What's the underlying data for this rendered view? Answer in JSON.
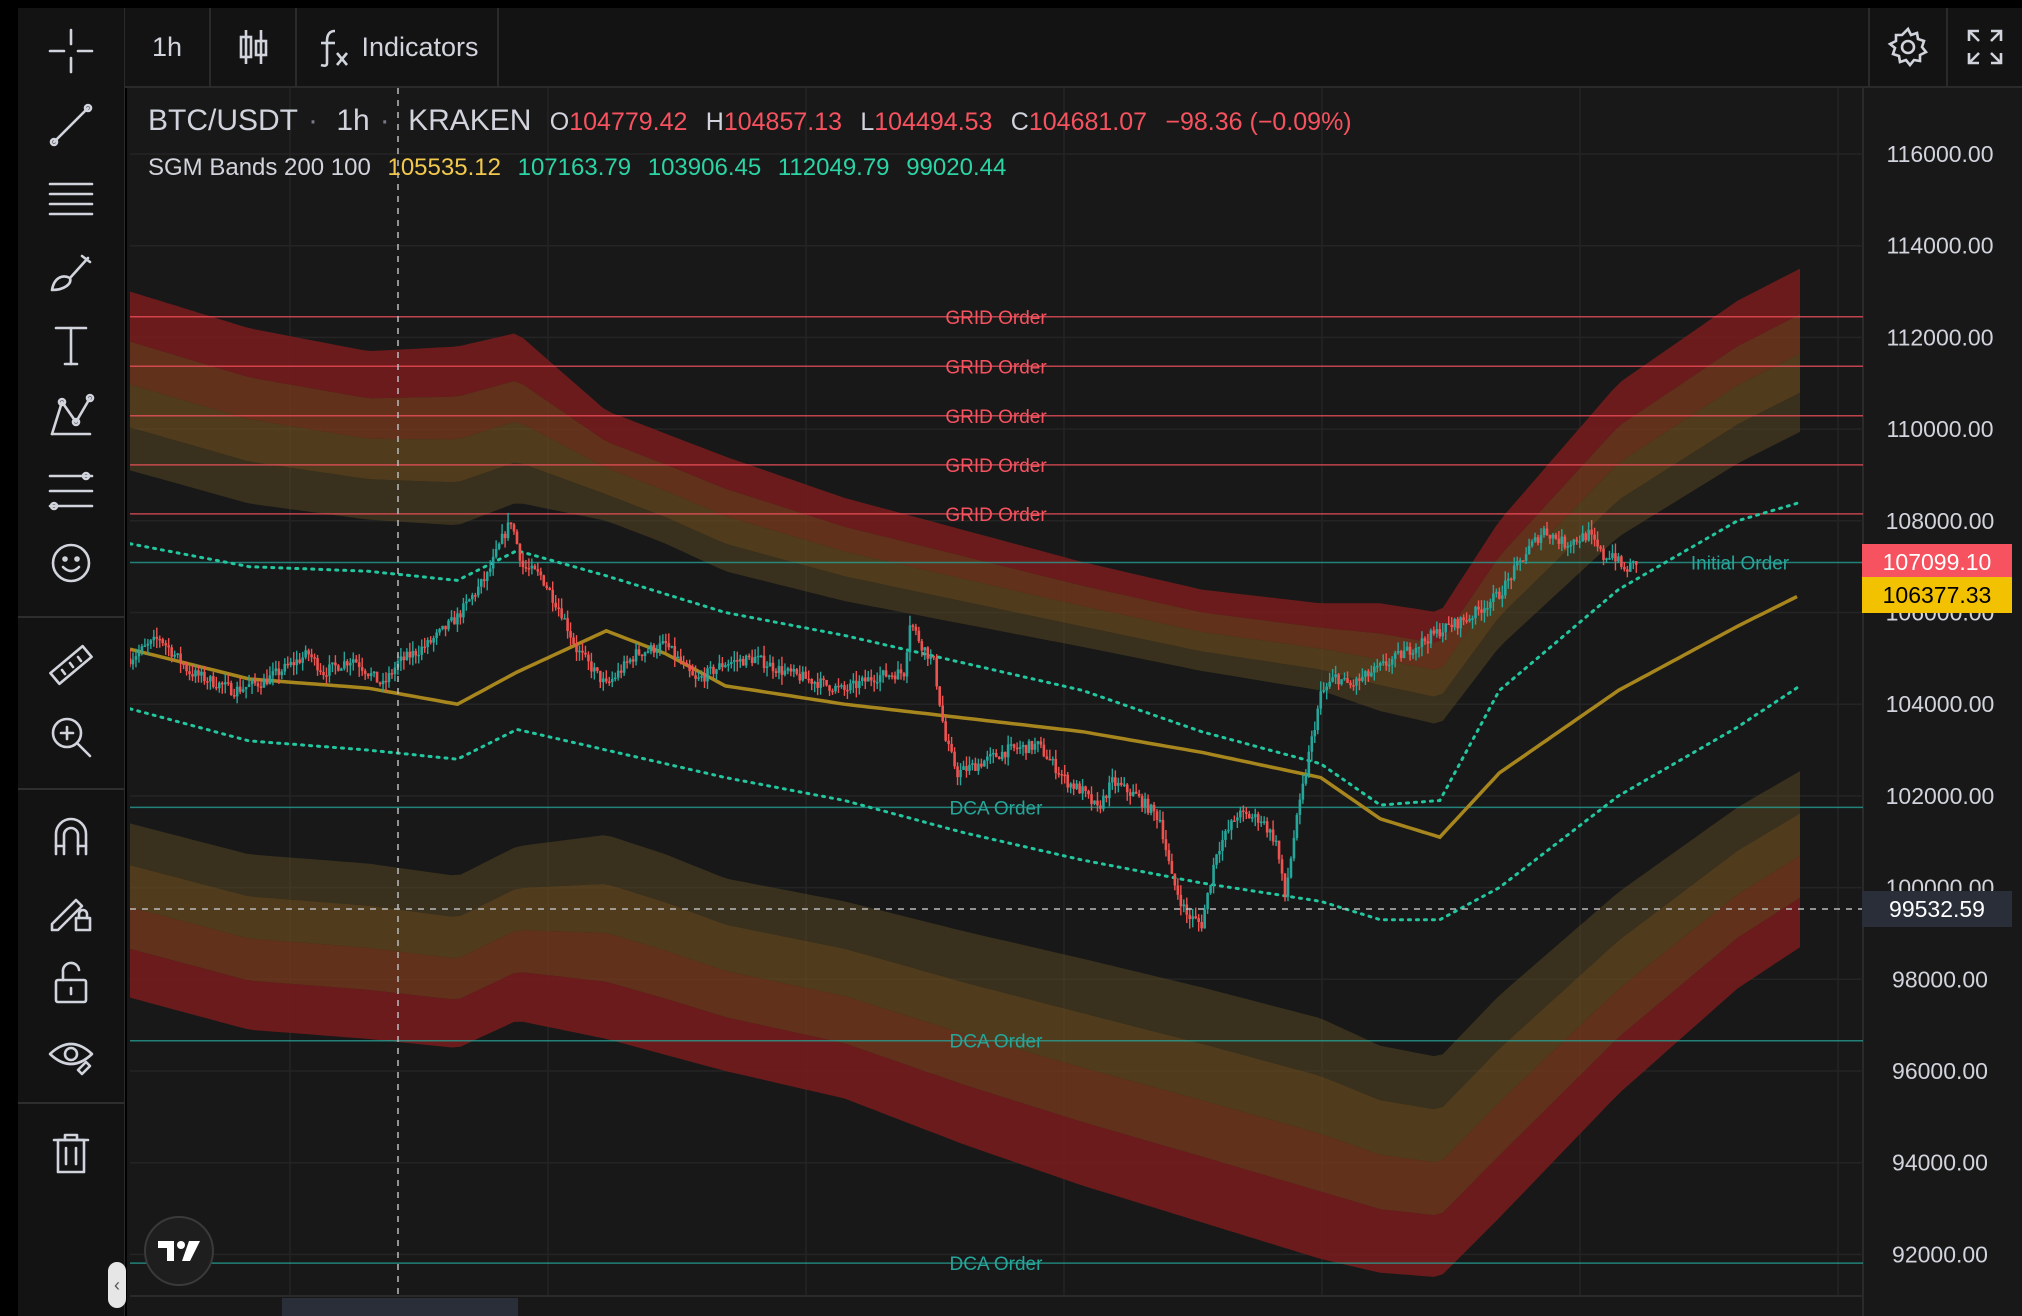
{
  "toolbar": {
    "interval": "1h",
    "indicators_label": "Indicators"
  },
  "left_tools": [
    {
      "name": "crosshair-icon"
    },
    {
      "name": "trend-line-icon"
    },
    {
      "name": "horizontal-lines-icon"
    },
    {
      "name": "brush-icon"
    },
    {
      "name": "text-icon"
    },
    {
      "name": "pattern-icon"
    },
    {
      "name": "forecast-icon"
    },
    {
      "name": "emoji-icon"
    },
    {
      "name": "ruler-icon"
    },
    {
      "name": "zoom-icon"
    },
    {
      "name": "magnet-icon"
    },
    {
      "name": "draw-lock-icon"
    },
    {
      "name": "unlock-icon"
    },
    {
      "name": "eye-icon"
    },
    {
      "name": "trash-icon"
    }
  ],
  "legend": {
    "symbol": "BTC/USDT",
    "interval": "1h",
    "exchange": "KRAKEN",
    "o_label": "O",
    "o_value": "104779.42",
    "h_label": "H",
    "h_value": "104857.13",
    "l_label": "L",
    "l_value": "104494.53",
    "c_label": "C",
    "c_value": "104681.07",
    "change": "−98.36 (−0.09%)",
    "indicator_name": "SGM Bands 200 100",
    "ind_values": [
      "105535.12",
      "107163.79",
      "103906.45",
      "112049.79",
      "99020.44"
    ],
    "ind_colors": [
      "#f2c94c",
      "#2bd4a4",
      "#2bd4a4",
      "#2bd4a4",
      "#2bd4a4"
    ]
  },
  "price_axis": {
    "labels": [
      "116000.00",
      "114000.00",
      "112000.00",
      "110000.00",
      "108000.00",
      "106000.00",
      "104000.00",
      "102000.00",
      "100000.00",
      "98000.00",
      "96000.00",
      "94000.00",
      "92000.00"
    ],
    "values": [
      116000,
      114000,
      112000,
      110000,
      108000,
      106000,
      104000,
      102000,
      100000,
      98000,
      96000,
      94000,
      92000
    ]
  },
  "price_tags": [
    {
      "label": "107099.10",
      "value": 107099.1,
      "bg": "#f7525f",
      "fg": "#ffffff"
    },
    {
      "label": "106377.33",
      "value": 106377.33,
      "bg": "#f2c200",
      "fg": "#000000"
    },
    {
      "label": "99532.59",
      "value": 99532.59,
      "bg": "#2a2e39",
      "fg": "#ffffff"
    }
  ],
  "orders": [
    {
      "label": "GRID Order",
      "price": 112450,
      "color": "#f7525f"
    },
    {
      "label": "GRID Order",
      "price": 111370,
      "color": "#f7525f"
    },
    {
      "label": "GRID Order",
      "price": 110290,
      "color": "#f7525f"
    },
    {
      "label": "GRID Order",
      "price": 109220,
      "color": "#f7525f"
    },
    {
      "label": "GRID Order",
      "price": 108150,
      "color": "#f7525f"
    },
    {
      "label": "Initial Order",
      "price": 107090,
      "color": "#26a69a"
    },
    {
      "label": "DCA Order",
      "price": 101750,
      "color": "#26a69a"
    },
    {
      "label": "DCA Order",
      "price": 96660,
      "color": "#26a69a"
    },
    {
      "label": "DCA Order",
      "price": 91810,
      "color": "#26a69a"
    }
  ],
  "colors": {
    "up": "#26a69a",
    "down": "#ef5350",
    "basis": "#a8861e",
    "band_dots": "#22c7a0"
  },
  "chart_data": {
    "type": "candlestick",
    "symbol": "BTC/USDT",
    "interval": "1h",
    "ylim": [
      91500,
      117500
    ],
    "basis": [
      [
        0,
        105200
      ],
      [
        40,
        104550
      ],
      [
        80,
        104350
      ],
      [
        110,
        104000
      ],
      [
        130,
        104700
      ],
      [
        160,
        105600
      ],
      [
        180,
        105100
      ],
      [
        200,
        104400
      ],
      [
        240,
        104000
      ],
      [
        280,
        103700
      ],
      [
        320,
        103400
      ],
      [
        360,
        102950
      ],
      [
        400,
        102400
      ],
      [
        420,
        101500
      ],
      [
        440,
        101100
      ],
      [
        460,
        102500
      ],
      [
        500,
        104300
      ],
      [
        540,
        105700
      ],
      [
        561,
        106380
      ]
    ],
    "upper_dots": [
      [
        0,
        107500
      ],
      [
        40,
        107000
      ],
      [
        80,
        106900
      ],
      [
        110,
        106700
      ],
      [
        130,
        107350
      ],
      [
        160,
        106800
      ],
      [
        200,
        106000
      ],
      [
        240,
        105500
      ],
      [
        280,
        104900
      ],
      [
        320,
        104300
      ],
      [
        360,
        103400
      ],
      [
        400,
        102700
      ],
      [
        420,
        101800
      ],
      [
        440,
        101900
      ],
      [
        460,
        104300
      ],
      [
        500,
        106500
      ],
      [
        540,
        108000
      ],
      [
        561,
        108400
      ]
    ],
    "lower_dots": [
      [
        0,
        103900
      ],
      [
        40,
        103200
      ],
      [
        80,
        103000
      ],
      [
        110,
        102800
      ],
      [
        130,
        103450
      ],
      [
        160,
        103000
      ],
      [
        200,
        102400
      ],
      [
        240,
        101900
      ],
      [
        280,
        101200
      ],
      [
        320,
        100600
      ],
      [
        360,
        100100
      ],
      [
        400,
        99700
      ],
      [
        420,
        99300
      ],
      [
        440,
        99300
      ],
      [
        460,
        100000
      ],
      [
        500,
        102000
      ],
      [
        540,
        103500
      ],
      [
        561,
        104400
      ]
    ],
    "upper_band": [
      [
        0,
        113000
      ],
      [
        40,
        112200
      ],
      [
        80,
        111700
      ],
      [
        110,
        111800
      ],
      [
        130,
        112100
      ],
      [
        160,
        110400
      ],
      [
        200,
        109400
      ],
      [
        240,
        108500
      ],
      [
        280,
        107800
      ],
      [
        320,
        107100
      ],
      [
        360,
        106500
      ],
      [
        400,
        106200
      ],
      [
        420,
        106200
      ],
      [
        440,
        106000
      ],
      [
        460,
        108000
      ],
      [
        500,
        111000
      ],
      [
        540,
        112800
      ],
      [
        561,
        113500
      ]
    ],
    "lower_band": [
      [
        0,
        97600
      ],
      [
        40,
        96900
      ],
      [
        80,
        96700
      ],
      [
        110,
        96500
      ],
      [
        130,
        97100
      ],
      [
        160,
        96700
      ],
      [
        200,
        96000
      ],
      [
        240,
        95400
      ],
      [
        280,
        94400
      ],
      [
        320,
        93500
      ],
      [
        360,
        92700
      ],
      [
        400,
        91900
      ],
      [
        420,
        91600
      ],
      [
        440,
        91500
      ],
      [
        460,
        92800
      ],
      [
        500,
        95500
      ],
      [
        540,
        97800
      ],
      [
        561,
        98700
      ]
    ],
    "price_path": [
      [
        0,
        105000
      ],
      [
        10,
        105450
      ],
      [
        20,
        104700
      ],
      [
        35,
        104300
      ],
      [
        45,
        104500
      ],
      [
        60,
        105100
      ],
      [
        65,
        104700
      ],
      [
        75,
        105000
      ],
      [
        85,
        104400
      ],
      [
        90,
        104900
      ],
      [
        100,
        105300
      ],
      [
        110,
        105900
      ],
      [
        120,
        106800
      ],
      [
        125,
        107600
      ],
      [
        128,
        108000
      ],
      [
        132,
        107000
      ],
      [
        138,
        106800
      ],
      [
        145,
        106000
      ],
      [
        150,
        105200
      ],
      [
        160,
        104400
      ],
      [
        170,
        105100
      ],
      [
        180,
        105300
      ],
      [
        190,
        104500
      ],
      [
        200,
        104900
      ],
      [
        210,
        105000
      ],
      [
        220,
        104700
      ],
      [
        230,
        104500
      ],
      [
        240,
        104300
      ],
      [
        250,
        104600
      ],
      [
        260,
        104700
      ],
      [
        262,
        105800
      ],
      [
        266,
        105300
      ],
      [
        270,
        104900
      ],
      [
        274,
        103200
      ],
      [
        278,
        102500
      ],
      [
        285,
        102700
      ],
      [
        295,
        103000
      ],
      [
        305,
        103100
      ],
      [
        315,
        102300
      ],
      [
        320,
        102100
      ],
      [
        325,
        101700
      ],
      [
        330,
        102300
      ],
      [
        338,
        102000
      ],
      [
        346,
        101500
      ],
      [
        350,
        100200
      ],
      [
        355,
        99400
      ],
      [
        360,
        99200
      ],
      [
        365,
        100800
      ],
      [
        372,
        101600
      ],
      [
        380,
        101500
      ],
      [
        385,
        101000
      ],
      [
        388,
        99800
      ],
      [
        391,
        101100
      ],
      [
        396,
        102900
      ],
      [
        400,
        104200
      ],
      [
        405,
        104600
      ],
      [
        410,
        104400
      ],
      [
        420,
        104800
      ],
      [
        430,
        105200
      ],
      [
        440,
        105600
      ],
      [
        450,
        105900
      ],
      [
        460,
        106400
      ],
      [
        465,
        106900
      ],
      [
        470,
        107400
      ],
      [
        475,
        107800
      ],
      [
        482,
        107500
      ],
      [
        490,
        107700
      ],
      [
        495,
        107200
      ],
      [
        498,
        107300
      ],
      [
        502,
        106900
      ],
      [
        506,
        107100
      ]
    ],
    "x_axis_labels_visible": false
  }
}
